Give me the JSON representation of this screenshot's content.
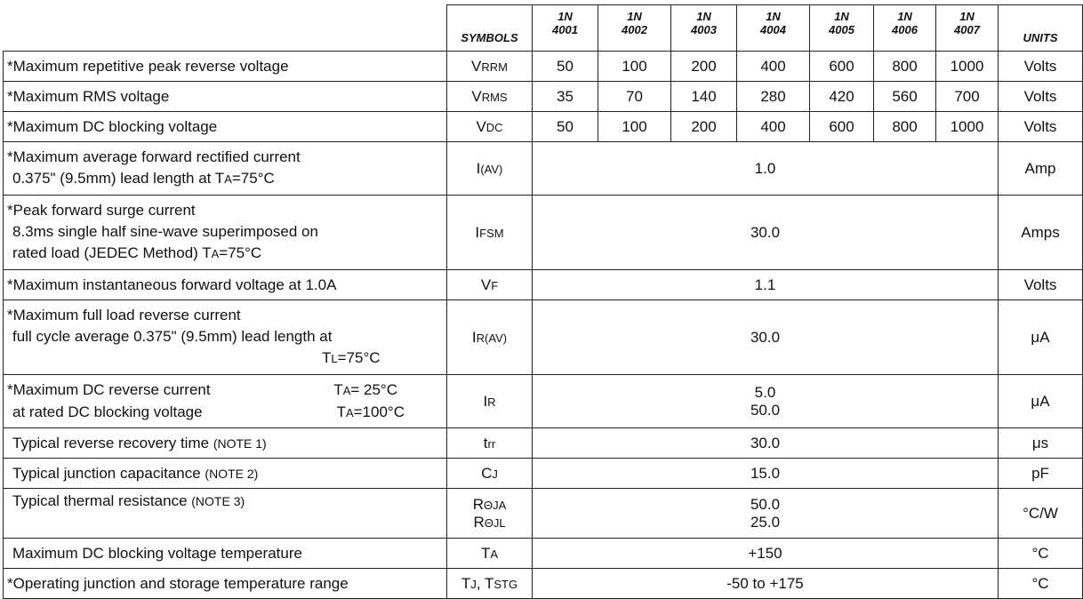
{
  "header": {
    "symbols_label": "SYMBOLS",
    "units_label": "UNITS",
    "parts": [
      {
        "prefix": "1N",
        "number": "4001"
      },
      {
        "prefix": "1N",
        "number": "4002"
      },
      {
        "prefix": "1N",
        "number": "4003"
      },
      {
        "prefix": "1N",
        "number": "4004"
      },
      {
        "prefix": "1N",
        "number": "4005"
      },
      {
        "prefix": "1N",
        "number": "4006"
      },
      {
        "prefix": "1N",
        "number": "4007"
      }
    ]
  },
  "rows": {
    "vrrm": {
      "param": "*Maximum repetitive peak reverse voltage",
      "sym_main": "V",
      "sym_sub": "RRM",
      "values": [
        "50",
        "100",
        "200",
        "400",
        "600",
        "800",
        "1000"
      ],
      "unit": "Volts"
    },
    "vrms": {
      "param": "*Maximum RMS voltage",
      "sym_main": "V",
      "sym_sub": "RMS",
      "values": [
        "35",
        "70",
        "140",
        "280",
        "420",
        "560",
        "700"
      ],
      "unit": "Volts"
    },
    "vdc": {
      "param": "*Maximum DC blocking voltage",
      "sym_main": "V",
      "sym_sub": "DC",
      "values": [
        "50",
        "100",
        "200",
        "400",
        "600",
        "800",
        "1000"
      ],
      "unit": "Volts"
    },
    "iav": {
      "param_l1": "*Maximum average forward rectified current",
      "param_l2": "0.375\" (9.5mm) lead length at T",
      "param_l2_sub": "A",
      "param_l2_end": "=75°C",
      "sym_main": "I",
      "sym_sub": "(AV)",
      "value": "1.0",
      "unit": "Amp"
    },
    "ifsm": {
      "param_l1": "*Peak forward surge current",
      "param_l2": "8.3ms single half sine-wave superimposed on",
      "param_l3": "rated load (JEDEC Method) T",
      "param_l3_sub": "A",
      "param_l3_end": "=75°C",
      "sym_main": "I",
      "sym_sub": "FSM",
      "value": "30.0",
      "unit": "Amps"
    },
    "vf": {
      "param": "*Maximum instantaneous forward voltage at 1.0A",
      "sym_main": "V",
      "sym_sub": "F",
      "value": "1.1",
      "unit": "Volts"
    },
    "irav": {
      "param_l1": "*Maximum full load reverse current",
      "param_l2": "full cycle average 0.375\" (9.5mm) lead length at",
      "param_l3": "T",
      "param_l3_sub": "L",
      "param_l3_end": "=75°C",
      "sym_main": "I",
      "sym_sub": "R(AV)",
      "value": "30.0",
      "unit": "μA"
    },
    "ir": {
      "param_l1": "*Maximum DC reverse current",
      "param_l1_cond": "T",
      "param_l1_cond_sub": "A",
      "param_l1_cond_end": "= 25°C",
      "param_l2": "at rated DC blocking voltage",
      "param_l2_cond": "T",
      "param_l2_cond_sub": "A",
      "param_l2_cond_end": "=100°C",
      "sym_main": "I",
      "sym_sub": "R",
      "value_1": "5.0",
      "value_2": "50.0",
      "unit": "μA"
    },
    "trr": {
      "param": "Typical reverse recovery time",
      "note": "(NOTE 1)",
      "sym_main": "t",
      "sym_sub": "rr",
      "value": "30.0",
      "unit": "μs"
    },
    "cj": {
      "param": "Typical junction capacitance",
      "note": "(NOTE 2)",
      "sym_main": "C",
      "sym_sub": "J",
      "value": "15.0",
      "unit": "pF"
    },
    "rth": {
      "param": "Typical thermal resistance",
      "note": "(NOTE 3)",
      "sym1_main": "R",
      "sym1_sub": "ΘJA",
      "sym2_main": "R",
      "sym2_sub": "ΘJL",
      "value_1": "50.0",
      "value_2": "25.0",
      "unit": "°C/W"
    },
    "ta": {
      "param": "Maximum DC blocking voltage temperature",
      "sym_main": "T",
      "sym_sub": "A",
      "value": "+150",
      "unit": "°C"
    },
    "tj": {
      "param": "*Operating junction and storage temperature range",
      "sym1_main": "T",
      "sym1_sub": "J",
      "sym_sep": ", T",
      "sym2_sub": "STG",
      "value": "-50 to +175",
      "unit": "°C"
    }
  }
}
